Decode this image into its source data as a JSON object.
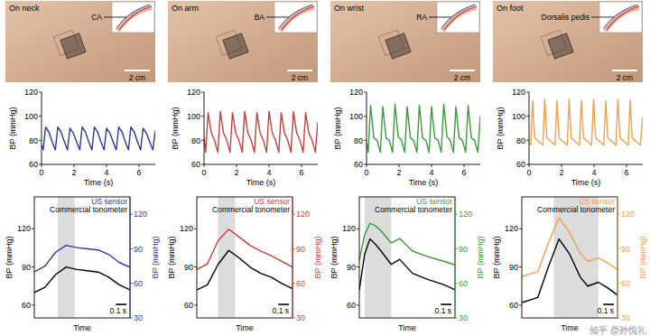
{
  "chart_data": [
    {
      "type": "line",
      "xlabel": "Time (s)",
      "ylabel": "BP (mmHg)",
      "xlim": [
        0,
        7
      ],
      "xticks": [
        0,
        2,
        4,
        6
      ],
      "ylim": [
        60,
        120
      ],
      "yticks": [
        60,
        80,
        100,
        120
      ],
      "x": [
        0,
        0.1,
        0.25,
        0.45,
        0.65,
        0.85,
        1.0,
        1.2,
        1.4,
        1.6,
        1.75,
        1.95,
        2.15,
        2.35,
        2.5,
        2.7,
        2.9,
        3.1,
        3.25,
        3.45,
        3.65,
        3.85,
        4.0,
        4.2,
        4.4,
        4.6,
        4.75,
        4.95,
        5.15,
        5.35,
        5.5,
        5.7,
        5.9,
        6.1,
        6.25,
        6.45,
        6.65,
        6.85,
        7.0
      ],
      "series": [
        {
          "color": "#2b3a93",
          "values": [
            76,
            72,
            91,
            87,
            79,
            72,
            91,
            87,
            79,
            72,
            90,
            86,
            79,
            72,
            91,
            87,
            79,
            72,
            91,
            87,
            79,
            72,
            90,
            86,
            79,
            72,
            91,
            87,
            79,
            72,
            91,
            87,
            79,
            72,
            90,
            86,
            79,
            72,
            88
          ]
        }
      ]
    },
    {
      "type": "line",
      "xlabel": "Time (s)",
      "ylabel": "BP (mmHg)",
      "xlim": [
        0,
        7
      ],
      "xticks": [
        0,
        2,
        4,
        6
      ],
      "ylim": [
        60,
        120
      ],
      "yticks": [
        60,
        80,
        100,
        120
      ],
      "x": [
        0,
        0.1,
        0.25,
        0.45,
        0.65,
        0.85,
        1.0,
        1.2,
        1.4,
        1.6,
        1.75,
        1.95,
        2.15,
        2.35,
        2.5,
        2.7,
        2.9,
        3.1,
        3.25,
        3.45,
        3.65,
        3.85,
        4.0,
        4.2,
        4.4,
        4.6,
        4.75,
        4.95,
        5.15,
        5.35,
        5.5,
        5.7,
        5.9,
        6.1,
        6.25,
        6.45,
        6.65,
        6.85,
        7.0
      ],
      "series": [
        {
          "color": "#c8403a",
          "values": [
            82,
            70,
            103,
            86,
            80,
            70,
            104,
            86,
            80,
            70,
            103,
            86,
            80,
            70,
            104,
            86,
            80,
            70,
            103,
            86,
            80,
            70,
            104,
            86,
            80,
            70,
            103,
            86,
            80,
            70,
            104,
            86,
            80,
            70,
            103,
            86,
            80,
            70,
            95
          ]
        }
      ]
    },
    {
      "type": "line",
      "xlabel": "Time (s)",
      "ylabel": "BP (mmHg)",
      "xlim": [
        0,
        7
      ],
      "xticks": [
        0,
        2,
        4,
        6
      ],
      "ylim": [
        60,
        120
      ],
      "yticks": [
        60,
        80,
        100,
        120
      ],
      "x": [
        0,
        0.1,
        0.25,
        0.45,
        0.65,
        0.85,
        1.0,
        1.2,
        1.4,
        1.6,
        1.75,
        1.95,
        2.15,
        2.35,
        2.5,
        2.7,
        2.9,
        3.1,
        3.25,
        3.45,
        3.65,
        3.85,
        4.0,
        4.2,
        4.4,
        4.6,
        4.75,
        4.95,
        5.15,
        5.35,
        5.5,
        5.7,
        5.9,
        6.1,
        6.25,
        6.45,
        6.65,
        6.85,
        7.0
      ],
      "series": [
        {
          "color": "#3c9a3c",
          "values": [
            78,
            70,
            109,
            82,
            80,
            70,
            108,
            82,
            80,
            70,
            110,
            83,
            80,
            70,
            108,
            82,
            80,
            70,
            109,
            82,
            80,
            70,
            108,
            82,
            80,
            70,
            110,
            83,
            80,
            70,
            108,
            82,
            80,
            70,
            109,
            82,
            80,
            70,
            100
          ]
        }
      ]
    },
    {
      "type": "line",
      "xlabel": "Time (s)",
      "ylabel": "BP (mmHg)",
      "xlim": [
        0,
        7
      ],
      "xticks": [
        0,
        2,
        4,
        6
      ],
      "ylim": [
        60,
        120
      ],
      "yticks": [
        60,
        80,
        100,
        120
      ],
      "x": [
        0,
        0.1,
        0.22,
        0.35,
        0.6,
        0.85,
        0.97,
        1.1,
        1.35,
        1.6,
        1.72,
        1.85,
        2.1,
        2.35,
        2.47,
        2.6,
        2.85,
        3.1,
        3.22,
        3.35,
        3.6,
        3.85,
        3.97,
        4.1,
        4.35,
        4.6,
        4.72,
        4.85,
        5.1,
        5.35,
        5.47,
        5.6,
        5.85,
        6.1,
        6.22,
        6.35,
        6.6,
        6.85,
        7.0
      ],
      "series": [
        {
          "color": "#f2a04a",
          "values": [
            78,
            76,
            113,
            82,
            79,
            76,
            114,
            82,
            79,
            76,
            113,
            82,
            79,
            76,
            114,
            82,
            79,
            76,
            113,
            82,
            79,
            76,
            114,
            82,
            79,
            76,
            113,
            82,
            79,
            76,
            114,
            82,
            79,
            76,
            113,
            82,
            79,
            76,
            100
          ]
        }
      ]
    },
    {
      "type": "line",
      "xlabel": "Time",
      "ylabel": "BP (mmHg)",
      "y2label": "BP (mmHg)",
      "tick_labels": "y",
      "legend": "upper right",
      "xlim": [
        0,
        0.9
      ],
      "ylim": [
        50,
        145
      ],
      "yticks": [
        60,
        90,
        120
      ],
      "y2lim": [
        30,
        135
      ],
      "y2ticks": [
        30,
        60,
        90,
        120
      ],
      "highlight": [
        0.22,
        0.38
      ],
      "scale_bar": {
        "value": 0.1,
        "label": "0.1 s"
      },
      "x": [
        0,
        0.1,
        0.2,
        0.3,
        0.4,
        0.5,
        0.6,
        0.7,
        0.8,
        0.9
      ],
      "series": [
        {
          "name": "US sensor",
          "color": "#2b3a93",
          "axis": "y2",
          "values": [
            70,
            75,
            87,
            93,
            91,
            90,
            89,
            85,
            78,
            74
          ]
        },
        {
          "name": "Commercial tonometer",
          "color": "#000000",
          "values": [
            70,
            74,
            84,
            90,
            88,
            87,
            86,
            82,
            76,
            72
          ]
        }
      ]
    },
    {
      "type": "line",
      "xlabel": "Time",
      "ylabel": "BP (mmHg)",
      "y2label": "BP (mmHg)",
      "tick_labels": "y",
      "legend": "upper right",
      "xlim": [
        0,
        0.9
      ],
      "ylim": [
        50,
        145
      ],
      "yticks": [
        60,
        90,
        120
      ],
      "y2lim": [
        30,
        135
      ],
      "y2ticks": [
        30,
        60,
        90,
        120
      ],
      "highlight": [
        0.2,
        0.36
      ],
      "scale_bar": {
        "value": 0.1,
        "label": "0.1 s"
      },
      "x": [
        0,
        0.1,
        0.2,
        0.3,
        0.4,
        0.5,
        0.6,
        0.7,
        0.8,
        0.9
      ],
      "series": [
        {
          "name": "US sensor",
          "color": "#c8403a",
          "axis": "y2",
          "values": [
            72,
            77,
            97,
            107,
            100,
            93,
            88,
            84,
            79,
            74
          ]
        },
        {
          "name": "Commercial tonometer",
          "color": "#000000",
          "values": [
            72,
            76,
            92,
            103,
            97,
            90,
            85,
            82,
            77,
            73
          ]
        }
      ]
    },
    {
      "type": "line",
      "xlabel": "Time",
      "ylabel": "BP (mmHg)",
      "y2label": "BP (mmHg)",
      "tick_labels": "y",
      "legend": "upper right",
      "xlim": [
        0,
        0.9
      ],
      "ylim": [
        50,
        145
      ],
      "yticks": [
        60,
        90,
        120
      ],
      "y2lim": [
        30,
        135
      ],
      "y2ticks": [
        30,
        60,
        90,
        120
      ],
      "highlight": [
        0.05,
        0.3
      ],
      "scale_bar": {
        "value": 0.1,
        "label": "0.1 s"
      },
      "x": [
        0,
        0.05,
        0.1,
        0.15,
        0.2,
        0.3,
        0.38,
        0.5,
        0.65,
        0.8,
        0.9
      ],
      "series": [
        {
          "name": "US sensor",
          "color": "#3c9a3c",
          "axis": "y2",
          "values": [
            80,
            102,
            112,
            110,
            106,
            95,
            99,
            88,
            83,
            79,
            76
          ]
        },
        {
          "name": "Commercial tonometer",
          "color": "#000000",
          "values": [
            72,
            100,
            112,
            108,
            103,
            92,
            96,
            85,
            80,
            76,
            72
          ]
        }
      ]
    },
    {
      "type": "line",
      "xlabel": "Time",
      "ylabel": "BP (mmHg)",
      "y2label": "BP (mmHg)",
      "tick_labels": "y",
      "legend": "upper right",
      "xlim": [
        0,
        0.9
      ],
      "ylim": [
        50,
        145
      ],
      "yticks": [
        60,
        90,
        120
      ],
      "y2lim": [
        30,
        135
      ],
      "y2ticks": [
        30,
        60,
        90,
        120
      ],
      "highlight": [
        0.3,
        0.72
      ],
      "scale_bar": {
        "value": 0.1,
        "label": "0.1 s"
      },
      "x": [
        0,
        0.15,
        0.25,
        0.35,
        0.45,
        0.55,
        0.62,
        0.72,
        0.8,
        0.9
      ],
      "series": [
        {
          "name": "US sensor",
          "color": "#f2a04a",
          "axis": "y2",
          "values": [
            66,
            70,
            95,
            117,
            104,
            86,
            79,
            82,
            78,
            72
          ]
        },
        {
          "name": "Commercial tonometer",
          "color": "#000000",
          "values": [
            62,
            66,
            90,
            112,
            100,
            82,
            75,
            78,
            74,
            68
          ]
        }
      ]
    }
  ],
  "photos": [
    {
      "label": "On neck",
      "artery": "CA",
      "scale": "2 cm"
    },
    {
      "label": "On arm",
      "artery": "BA",
      "scale": "2 cm"
    },
    {
      "label": "On wrist",
      "artery": "RA",
      "scale": "2 cm"
    },
    {
      "label": "On foot",
      "artery": "Dorsalis pedis",
      "scale": "2 cm"
    }
  ],
  "watermark": "知乎 @孙悦礼"
}
